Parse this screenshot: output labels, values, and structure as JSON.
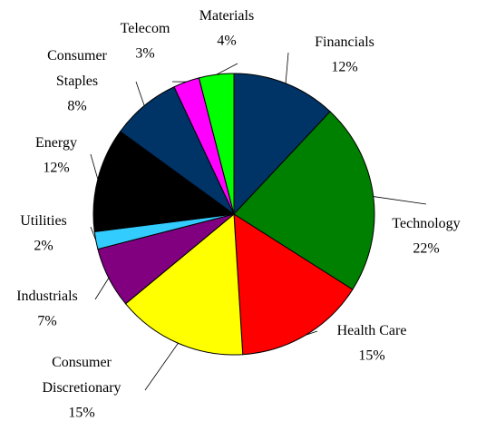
{
  "chart_data": {
    "type": "pie",
    "categories": [
      "Financials",
      "Technology",
      "Health Care",
      "Consumer Discretionary",
      "Industrials",
      "Utilities",
      "Energy",
      "Consumer Staples",
      "Telecom",
      "Materials"
    ],
    "values": [
      12,
      22,
      15,
      15,
      7,
      2,
      12,
      8,
      3,
      4
    ],
    "value_labels": [
      "12%",
      "22%",
      "15%",
      "15%",
      "7%",
      "2%",
      "12%",
      "8%",
      "3%",
      "4%"
    ],
    "colors": [
      "#003366",
      "#008000",
      "#ff0000",
      "#ffff00",
      "#800080",
      "#33ccff",
      "#000000",
      "#003366",
      "#ff00ff",
      "#00ff00"
    ]
  }
}
